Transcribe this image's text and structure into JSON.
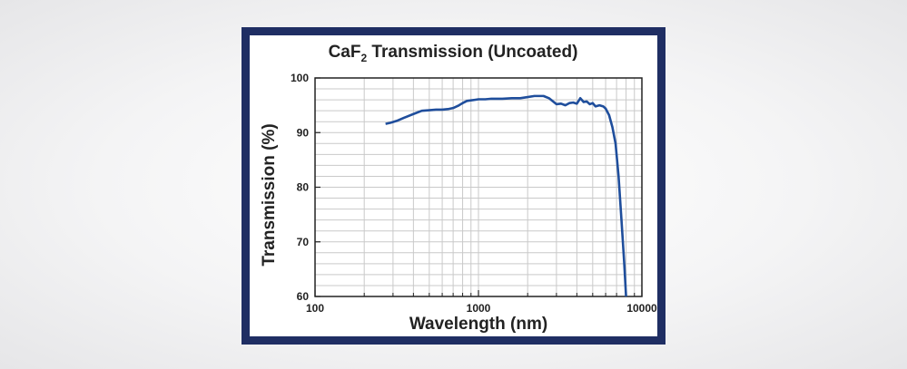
{
  "chart_data": {
    "type": "line",
    "title_main": "CaF",
    "title_sub": "2",
    "title_rest": " Transmission (Uncoated)",
    "xlabel": "Wavelength (nm)",
    "ylabel": "Transmission (%)",
    "x_scale": "log",
    "xlim": [
      100,
      10000
    ],
    "ylim": [
      60,
      100
    ],
    "x_ticks": [
      100,
      1000,
      10000
    ],
    "x_tick_labels": [
      "100",
      "1000",
      "10000"
    ],
    "y_ticks": [
      60,
      70,
      80,
      90,
      100
    ],
    "y_tick_labels": [
      "60",
      "70",
      "80",
      "90",
      "100"
    ],
    "grid": true,
    "line_color": "#1f4e9c",
    "series": [
      {
        "x": [
          270,
          290,
          320,
          350,
          400,
          450,
          500,
          550,
          600,
          650,
          700,
          750,
          800,
          850,
          900,
          950,
          1000,
          1100,
          1200,
          1400,
          1600,
          1800,
          2000,
          2200,
          2500,
          2700,
          3000,
          3200,
          3400,
          3600,
          3800,
          4000,
          4200,
          4400,
          4600,
          4800,
          5000,
          5200,
          5500,
          5800,
          6000,
          6300,
          6600,
          6900,
          7200,
          7500,
          7800,
          8000
        ],
        "y": [
          91.6,
          91.8,
          92.2,
          92.7,
          93.4,
          94.0,
          94.1,
          94.2,
          94.2,
          94.3,
          94.5,
          94.9,
          95.4,
          95.8,
          95.9,
          96.0,
          96.1,
          96.1,
          96.2,
          96.2,
          96.3,
          96.3,
          96.5,
          96.7,
          96.7,
          96.3,
          95.2,
          95.3,
          95.0,
          95.4,
          95.5,
          95.3,
          96.3,
          95.6,
          95.7,
          95.2,
          95.4,
          94.8,
          95.0,
          94.8,
          94.4,
          93.2,
          91.0,
          88.0,
          82.0,
          74.0,
          66.0,
          60.0
        ]
      }
    ]
  }
}
